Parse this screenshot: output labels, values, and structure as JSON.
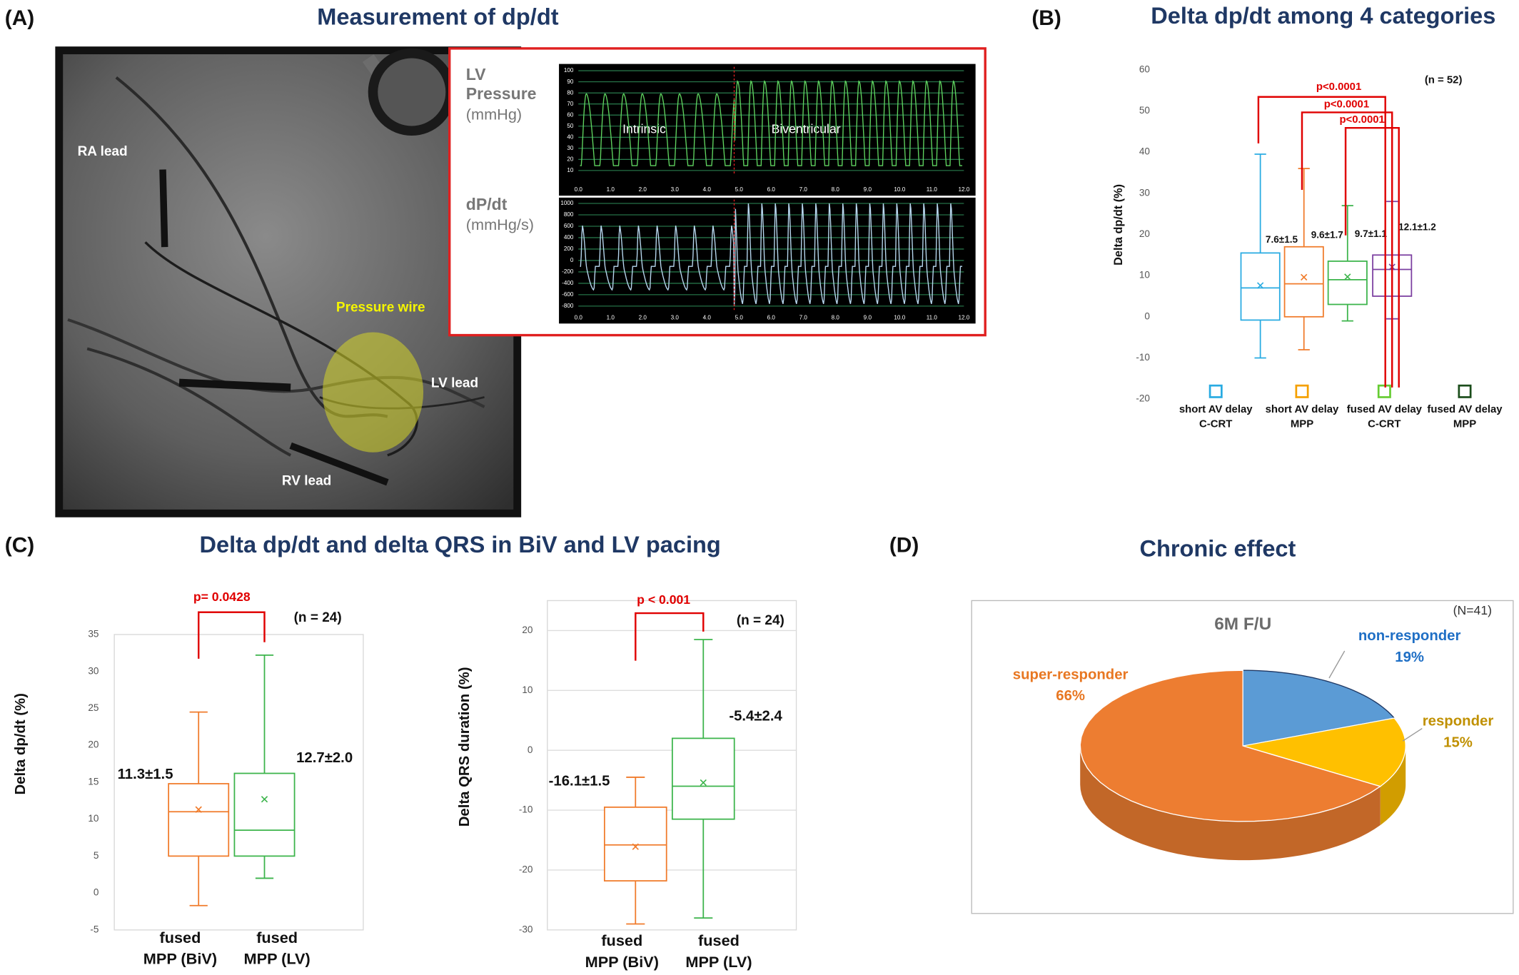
{
  "figure": {
    "A": {
      "letter": "(A)",
      "title": "Measurement of dp/dt",
      "labels": {
        "ra": "RA lead",
        "wire": "Pressure wire",
        "lv": "LV lead",
        "rv": "RV lead"
      }
    },
    "B": {
      "letter": "(B)",
      "title": "Delta dp/dt among 4 categories"
    },
    "C": {
      "letter": "(C)",
      "title": "Delta dp/dt and delta QRS in BiV and LV pacing"
    },
    "D": {
      "letter": "(D)",
      "title": "Chronic effect"
    }
  },
  "chart_data": [
    {
      "type": "waveform",
      "y_label": [
        "LV",
        "Pressure",
        "(mmHg)"
      ],
      "annotations": [
        "Intrinsic",
        "Biventricular"
      ],
      "xlim": [
        0,
        12
      ],
      "xticks": [
        {
          "value": 0,
          "label": "0.0"
        },
        {
          "value": 1,
          "label": "1.0"
        },
        {
          "value": 2,
          "label": "2.0"
        },
        {
          "value": 3,
          "label": "3.0"
        },
        {
          "value": 4,
          "label": "4.0"
        },
        {
          "value": 5,
          "label": "5.0"
        },
        {
          "value": 6,
          "label": "6.0"
        },
        {
          "value": 7,
          "label": "7.0"
        },
        {
          "value": 8,
          "label": "8.0"
        },
        {
          "value": 9,
          "label": "9.0"
        },
        {
          "value": 10,
          "label": "10.0"
        },
        {
          "value": 11,
          "label": "11.0"
        },
        {
          "value": 12,
          "label": "12.0"
        }
      ],
      "ylim": [
        10,
        100
      ],
      "yticks": [
        10,
        20,
        30,
        40,
        50,
        60,
        70,
        80,
        90,
        100
      ],
      "color": "#5fd35f",
      "grid": true
    },
    {
      "type": "waveform",
      "y_label": [
        "dP/dt",
        "(mmHg/s)"
      ],
      "annotations": [],
      "xlim": [
        0,
        12
      ],
      "xticks": [
        {
          "value": 0,
          "label": "0.0"
        },
        {
          "value": 1,
          "label": "1.0"
        },
        {
          "value": 2,
          "label": "2.0"
        },
        {
          "value": 3,
          "label": "3.0"
        },
        {
          "value": 4,
          "label": "4.0"
        },
        {
          "value": 5,
          "label": "5.0"
        },
        {
          "value": 6,
          "label": "6.0"
        },
        {
          "value": 7,
          "label": "7.0"
        },
        {
          "value": 8,
          "label": "8.0"
        },
        {
          "value": 9,
          "label": "9.0"
        },
        {
          "value": 10,
          "label": "10.0"
        },
        {
          "value": 11,
          "label": "11.0"
        },
        {
          "value": 12,
          "label": "12.0"
        }
      ],
      "ylim": [
        -800,
        1000
      ],
      "yticks": [
        -800,
        -600,
        -400,
        -200,
        0,
        200,
        400,
        600,
        800,
        1000
      ],
      "color": "#b8d8f0",
      "grid": true
    },
    {
      "type": "box",
      "n_label": "(n = 52)",
      "y_label": "Delta dp/dt (%)",
      "ylim": [
        -20,
        60
      ],
      "yticks": [
        -20,
        -10,
        0,
        10,
        20,
        30,
        40,
        50,
        60
      ],
      "grid": false,
      "categories": [
        [
          "short AV delay",
          "C-CRT"
        ],
        [
          "short AV delay",
          "MPP"
        ],
        [
          "fused AV delay",
          "C-CRT"
        ],
        [
          "fused AV delay",
          "MPP"
        ]
      ],
      "legend_colors": [
        "#29abe2",
        "#f5a000",
        "#66cc33",
        "#1b4d1b"
      ],
      "boxes": [
        {
          "color": "#29abe2",
          "min": -10,
          "q1": -0.8,
          "median": 7,
          "q3": 15.5,
          "max": 39.5,
          "mean": 7.6,
          "mean_label": "7.6±1.5"
        },
        {
          "color": "#f07b2b",
          "min": -8,
          "q1": 0,
          "median": 8,
          "q3": 17,
          "max": 36,
          "mean": 9.6,
          "mean_label": "9.6±1.7"
        },
        {
          "color": "#3cb44b",
          "min": -1,
          "q1": 3,
          "median": 9,
          "q3": 13.5,
          "max": 27,
          "mean": 9.7,
          "mean_label": "9.7±1.1"
        },
        {
          "color": "#7b3fa0",
          "min": -0.5,
          "q1": 5,
          "median": 11.5,
          "q3": 15,
          "max": 28,
          "mean": 12.1,
          "mean_label": "12.1±1.2"
        }
      ],
      "comparisons": [
        {
          "from": 0,
          "to": 3,
          "label": "p<0.0001"
        },
        {
          "from": 1,
          "to": 3,
          "label": "p<0.0001"
        },
        {
          "from": 2,
          "to": 3,
          "label": "p<0.0001"
        }
      ]
    },
    {
      "type": "box",
      "n_label": "(n = 24)",
      "y_label": "Delta dp/dt (%)",
      "ylim": [
        -5,
        35
      ],
      "yticks": [
        -5,
        0,
        5,
        10,
        15,
        20,
        25,
        30,
        35
      ],
      "grid": false,
      "categories": [
        [
          "fused",
          "MPP (BiV)"
        ],
        [
          "fused",
          "MPP (LV)"
        ]
      ],
      "boxes": [
        {
          "color": "#f07b2b",
          "min": -1.7,
          "q1": 5,
          "median": 11,
          "q3": 14.8,
          "max": 24.5,
          "mean": 11.3,
          "mean_label": "11.3±1.5"
        },
        {
          "color": "#3cb44b",
          "min": 2,
          "q1": 5,
          "median": 8.5,
          "q3": 16.2,
          "max": 32.2,
          "mean": 12.7,
          "mean_label": "12.7±2.0"
        }
      ],
      "comparisons": [
        {
          "from": 0,
          "to": 1,
          "label": "p= 0.0428"
        }
      ]
    },
    {
      "type": "box",
      "n_label": "(n = 24)",
      "y_label": "Delta QRS duration (%)",
      "ylim": [
        -30,
        25
      ],
      "yticks": [
        -30,
        -20,
        -10,
        0,
        10,
        20
      ],
      "grid": true,
      "categories": [
        [
          "fused",
          "MPP (BiV)"
        ],
        [
          "fused",
          "MPP (LV)"
        ]
      ],
      "boxes": [
        {
          "color": "#f07b2b",
          "min": -29,
          "q1": -21.8,
          "median": -15.8,
          "q3": -9.5,
          "max": -4.5,
          "mean": -16.1,
          "mean_label": "-16.1±1.5"
        },
        {
          "color": "#3cb44b",
          "min": -28,
          "q1": -11.5,
          "median": -6,
          "q3": 2,
          "max": 18.5,
          "mean": -5.4,
          "mean_label": "-5.4±2.4"
        }
      ],
      "comparisons": [
        {
          "from": 0,
          "to": 1,
          "label": "p < 0.001"
        }
      ]
    },
    {
      "type": "pie",
      "subtitle": "6M F/U",
      "n_label": "(N=41)",
      "categories": [
        "non-responder",
        "responder",
        "super-responder"
      ],
      "values": [
        19,
        15,
        66
      ],
      "value_labels": [
        "19%",
        "15%",
        "66%"
      ],
      "colors": [
        "#5b9bd5",
        "#ffc000",
        "#ed7d31"
      ],
      "label_colors": [
        "#1f6fc5",
        "#c09000",
        "#e87722"
      ]
    }
  ]
}
